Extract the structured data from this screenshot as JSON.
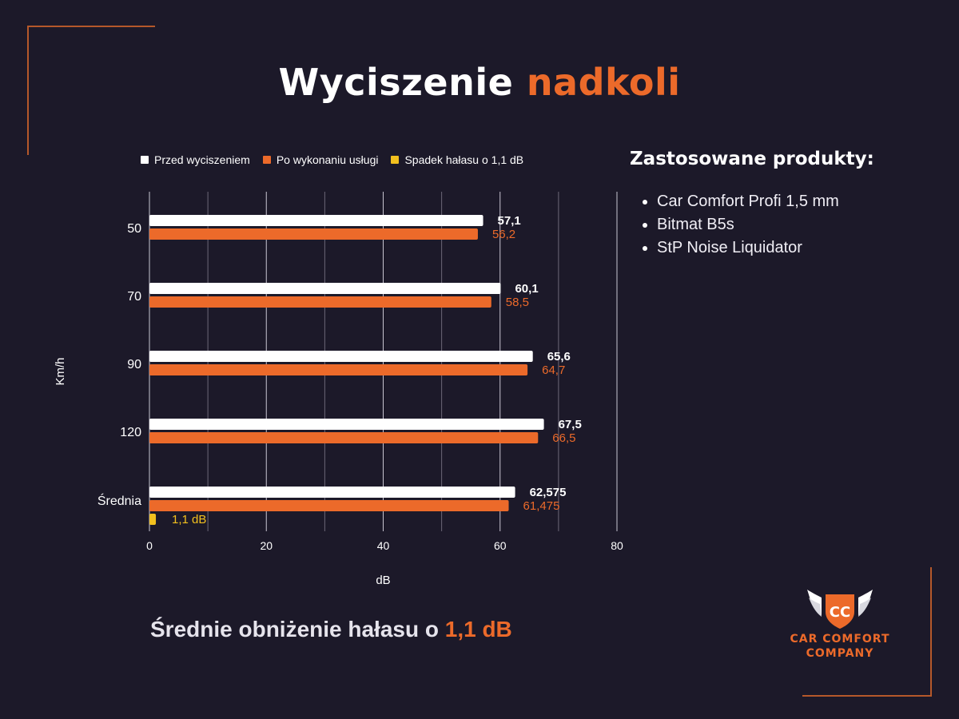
{
  "title": {
    "part1": "Wyciszenie",
    "part2": "nadkoli"
  },
  "side": {
    "title": "Zastosowane produkty:",
    "items": [
      "Car Comfort Profi 1,5 mm",
      "Bitmat B5s",
      "StP Noise Liquidator"
    ]
  },
  "summary": {
    "prefix": "Średnie obniżenie hałasu o",
    "value": "1,1 dB"
  },
  "logo": {
    "line1": "CAR COMFORT",
    "line2": "COMPANY",
    "mark": "CC"
  },
  "colors": {
    "background": "#1c1929",
    "accent": "#ec6a2a",
    "before": "#ffffff",
    "after": "#ec6a2a",
    "drop": "#f2c01e"
  },
  "chart_data": {
    "type": "bar",
    "orientation": "horizontal",
    "categories": [
      "50",
      "70",
      "90",
      "120",
      "Średnia"
    ],
    "series": [
      {
        "name": "Przed wyciszeniem",
        "color": "#ffffff",
        "values": [
          57.1,
          60.1,
          65.6,
          67.5,
          62.575
        ],
        "labels": [
          "57,1",
          "60,1",
          "65,6",
          "67,5",
          "62,575"
        ]
      },
      {
        "name": "Po wykonaniu usługi",
        "color": "#ec6a2a",
        "values": [
          56.2,
          58.5,
          64.7,
          66.5,
          61.475
        ],
        "labels": [
          "56,2",
          "58,5",
          "64,7",
          "66,5",
          "61,475"
        ]
      },
      {
        "name": "Spadek hałasu o 1,1 dB",
        "color": "#f2c01e",
        "values": [
          null,
          null,
          null,
          null,
          1.1
        ],
        "labels": [
          "",
          "",
          "",
          "",
          "1,1 dB"
        ]
      }
    ],
    "xlabel": "dB",
    "ylabel": "Km/h",
    "xlim": [
      0,
      80
    ],
    "xticks": [
      "0",
      "20",
      "40",
      "60",
      "80"
    ],
    "grid": true,
    "legend": "top"
  }
}
